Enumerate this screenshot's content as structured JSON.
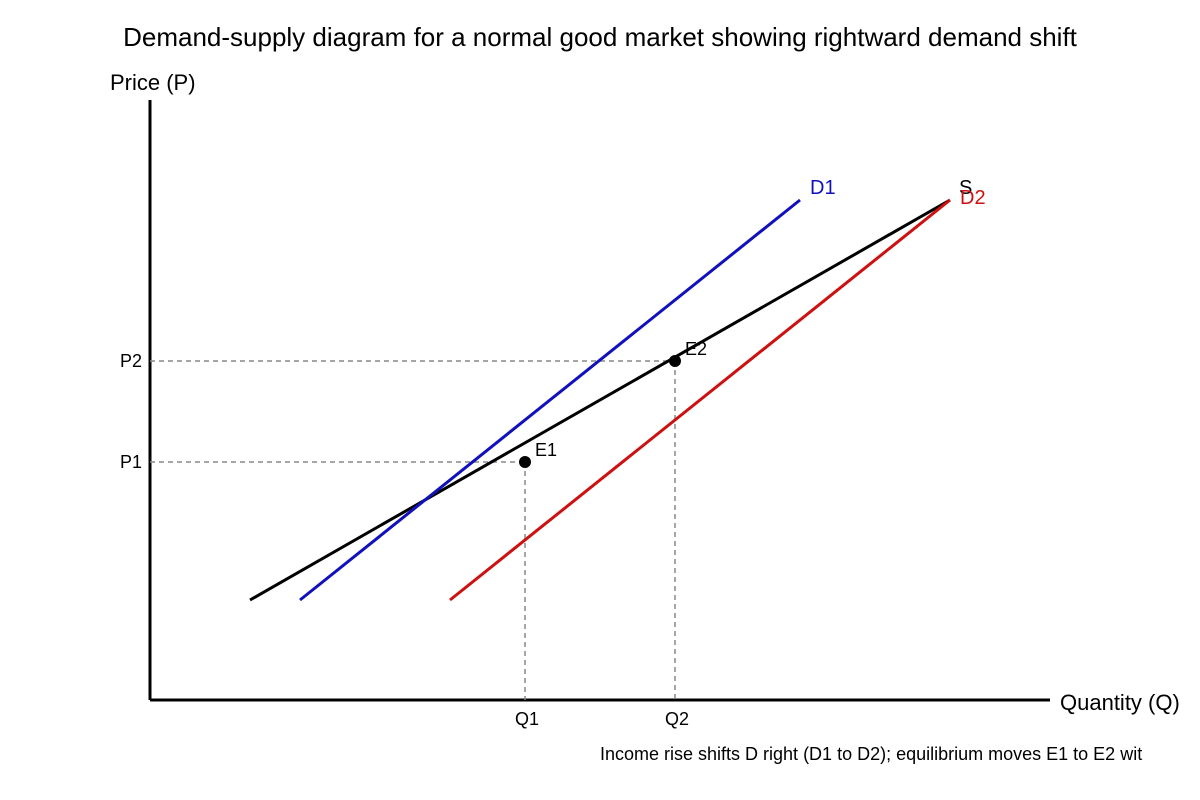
{
  "title": "Demand-supply diagram for a normal good market showing rightward demand shift",
  "axes": {
    "y_label": "Price (P)",
    "x_label": "Quantity (Q)"
  },
  "ticks": {
    "p1": "P1",
    "p2": "P2",
    "q1": "Q1",
    "q2": "Q2"
  },
  "curves": {
    "supply": {
      "label": "S",
      "color": "#000000"
    },
    "demand1": {
      "label": "D1",
      "color": "#1111bb"
    },
    "demand2": {
      "label": "D2",
      "color": "#cc1111"
    }
  },
  "points": {
    "e1": "E1",
    "e2": "E2"
  },
  "caption": "Income rise shifts D right (D1 to D2); equilibrium moves E1 to E2 wit"
}
